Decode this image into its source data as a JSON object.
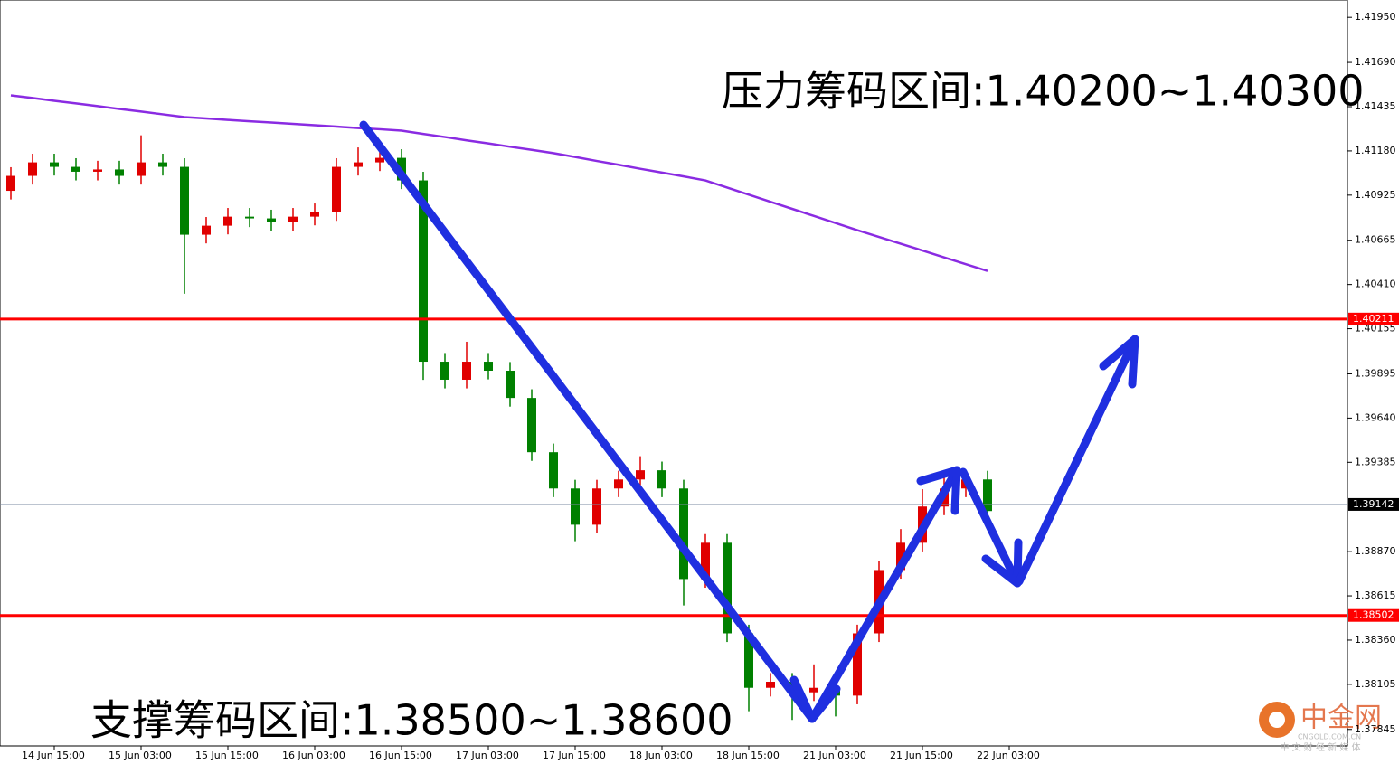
{
  "chart_data": {
    "type": "candlestick",
    "annotations": [
      "压力筹码区间:1.40200~1.40300",
      "支撑筹码区间:1.38500~1.38600"
    ],
    "watermark": {
      "name": "中金网",
      "site": "CNGOLD.COM.CN",
      "slogan": "中 文 财 经 新 媒 体"
    },
    "categories": [
      null,
      null,
      "14 Jun 15:00",
      null,
      null,
      null,
      "15 Jun 03:00",
      null,
      null,
      null,
      "15 Jun 15:00",
      null,
      null,
      null,
      "16 Jun 03:00",
      null,
      null,
      null,
      "16 Jun 15:00",
      null,
      null,
      null,
      "17 Jun 03:00",
      null,
      null,
      null,
      "17 Jun 15:00",
      null,
      null,
      null,
      "18 Jun 03:00",
      null,
      null,
      null,
      "18 Jun 15:00",
      null,
      null,
      null,
      "21 Jun 03:00",
      null,
      null,
      null,
      "21 Jun 15:00",
      null,
      null,
      null,
      "22 Jun 03:00"
    ],
    "open": [
      1.4095,
      1.41036,
      1.41114,
      1.41088,
      1.4106,
      1.41073,
      1.41036,
      1.41114,
      1.41088,
      1.40697,
      1.40749,
      1.40801,
      1.40791,
      1.4077,
      1.40801,
      1.40827,
      1.41088,
      1.41114,
      1.4114,
      1.4101,
      1.39965,
      1.39861,
      1.39965,
      1.39913,
      1.39756,
      1.39443,
      1.39234,
      1.39025,
      1.39234,
      1.39286,
      1.39339,
      1.39234,
      1.38712,
      1.38921,
      1.38399,
      1.38085,
      1.3812,
      1.38059,
      1.38085,
      1.3804,
      1.38399,
      1.38764,
      1.38921,
      1.3913,
      1.39234,
      1.39286,
      null
    ],
    "high": [
      1.41086,
      1.41164,
      1.41164,
      1.41138,
      1.41123,
      1.41123,
      1.4127,
      1.41164,
      1.41138,
      1.40799,
      1.40851,
      1.40851,
      1.40841,
      1.40851,
      1.40877,
      1.41138,
      1.412,
      1.4119,
      1.4119,
      1.4106,
      1.40015,
      1.4008,
      1.40015,
      1.39963,
      1.39806,
      1.39493,
      1.39284,
      1.39284,
      1.39336,
      1.3942,
      1.39389,
      1.39284,
      1.38971,
      1.38971,
      1.38449,
      1.3817,
      1.3817,
      1.3822,
      1.38135,
      1.38449,
      1.38814,
      1.39,
      1.3923,
      1.3933,
      1.39336,
      1.39336,
      null
    ],
    "low": [
      1.409,
      1.40986,
      1.41038,
      1.4101,
      1.4101,
      1.40986,
      1.40986,
      1.41038,
      1.40357,
      1.40647,
      1.40699,
      1.40741,
      1.4072,
      1.4072,
      1.40751,
      1.40777,
      1.41038,
      1.41064,
      1.4096,
      1.3986,
      1.39811,
      1.39811,
      1.39863,
      1.39706,
      1.39393,
      1.39184,
      1.3893,
      1.38975,
      1.39184,
      1.39236,
      1.39184,
      1.3856,
      1.38662,
      1.38349,
      1.3795,
      1.38035,
      1.379,
      1.38009,
      1.3792,
      1.3799,
      1.38349,
      1.38714,
      1.38871,
      1.3908,
      1.39184,
      1.39054,
      null
    ],
    "close": [
      1.41036,
      1.41114,
      1.41088,
      1.4106,
      1.41073,
      1.41036,
      1.41114,
      1.41088,
      1.40697,
      1.40749,
      1.40801,
      1.40791,
      1.4077,
      1.40801,
      1.40827,
      1.41088,
      1.41114,
      1.4114,
      1.4101,
      1.39965,
      1.39861,
      1.39965,
      1.39913,
      1.39756,
      1.39443,
      1.39234,
      1.39025,
      1.39234,
      1.39286,
      1.39339,
      1.39234,
      1.38712,
      1.38921,
      1.38399,
      1.38085,
      1.3812,
      1.38059,
      1.38085,
      1.3804,
      1.38399,
      1.38764,
      1.38921,
      1.3913,
      1.39234,
      1.39286,
      1.39104,
      null
    ],
    "up_color": "#e00000",
    "down_color": "#008000",
    "series": [
      {
        "color": "#8a2be2",
        "values": [
          1.415,
          1.41485,
          1.41469,
          1.41454,
          1.41438,
          1.41422,
          1.41407,
          1.41391,
          1.41375,
          1.41367,
          1.41359,
          1.41351,
          1.41344,
          1.41336,
          1.41328,
          1.4132,
          1.41312,
          1.41305,
          1.41297,
          1.41278,
          1.4126,
          1.41241,
          1.41223,
          1.41204,
          1.41186,
          1.41167,
          1.41145,
          1.41122,
          1.411,
          1.41077,
          1.41055,
          1.41033,
          1.4101,
          1.40969,
          1.40928,
          1.40887,
          1.40846,
          1.40805,
          1.40764,
          1.40723,
          1.40684,
          1.40645,
          1.40606,
          1.40566,
          1.40527,
          1.40488,
          null
        ]
      }
    ],
    "levels": [
      {
        "value": 1.40211,
        "color": "#ff0000"
      },
      {
        "value": 1.38502,
        "color": "#ff0000"
      }
    ],
    "current_price": {
      "value": 1.39142,
      "color": "#000000"
    },
    "ylim": [
      1.3775,
      1.4205
    ],
    "yticks": [
      {
        "value": 1.4195,
        "label": "1.41950"
      },
      {
        "value": 1.4169,
        "label": "1.41690"
      },
      1.41435,
      {
        "value": 1.4118,
        "label": "1.41180"
      },
      1.40925,
      1.40665,
      {
        "value": 1.4041,
        "label": "1.40410"
      },
      1.40155,
      1.39895,
      {
        "value": 1.3964,
        "label": "1.39640"
      },
      1.39385,
      {
        "value": 1.3887,
        "label": "1.38870"
      },
      1.38615,
      {
        "value": 1.3836,
        "label": "1.38360"
      },
      1.38105,
      1.37845
    ]
  }
}
